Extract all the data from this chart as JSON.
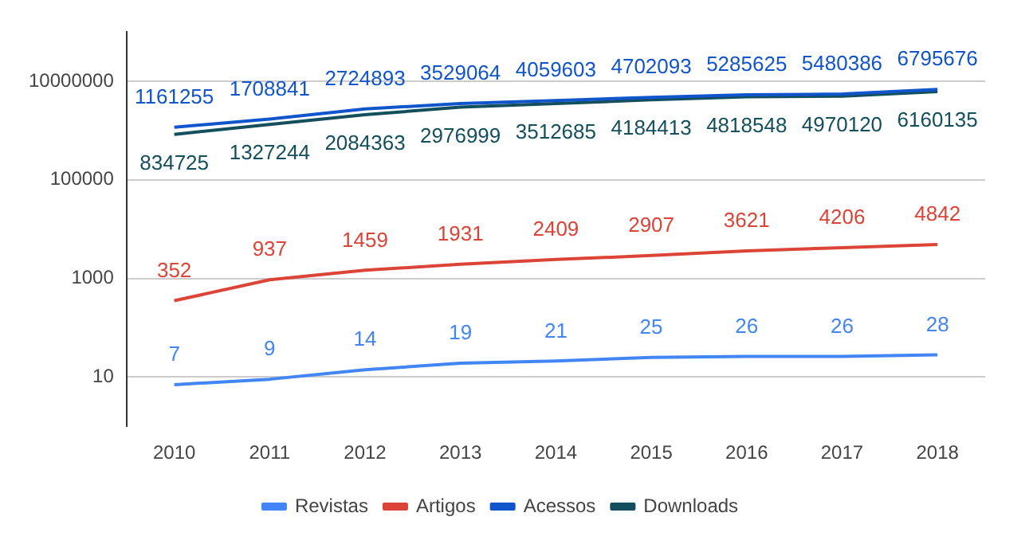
{
  "chart_data": {
    "type": "line",
    "categories": [
      "2010",
      "2011",
      "2012",
      "2013",
      "2014",
      "2015",
      "2016",
      "2017",
      "2018"
    ],
    "series": [
      {
        "name": "Revistas",
        "color": "#4285f4",
        "values": [
          7,
          9,
          14,
          19,
          21,
          25,
          26,
          26,
          28
        ]
      },
      {
        "name": "Artigos",
        "color": "#db4437",
        "values": [
          352,
          937,
          1459,
          1931,
          2409,
          2907,
          3621,
          4206,
          4842
        ]
      },
      {
        "name": "Acessos",
        "color": "#1155cc",
        "values": [
          1161255,
          1708841,
          2724893,
          3529064,
          4059603,
          4702093,
          5285625,
          5480386,
          6795676
        ]
      },
      {
        "name": "Downloads",
        "color": "#134f5c",
        "values": [
          834725,
          1327244,
          2084363,
          2976999,
          3512685,
          4184413,
          4818548,
          4970120,
          6160135
        ]
      }
    ],
    "log": "y",
    "ylim": [
      1,
      100000000
    ],
    "yticks": [
      10,
      1000,
      100000,
      10000000
    ],
    "grid": "y",
    "legend": "bottom",
    "data_labels": true,
    "marker": "none"
  }
}
